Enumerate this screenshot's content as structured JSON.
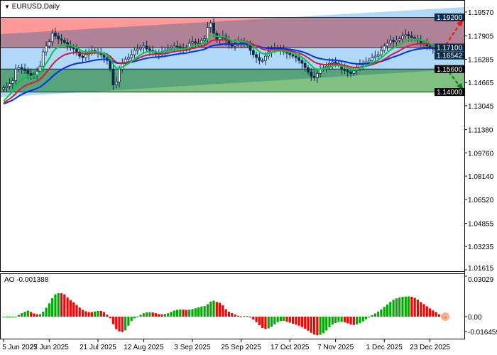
{
  "header": {
    "symbol_timeframe": "EURUSD,Daily",
    "menu_icon": "triangle-down-icon"
  },
  "ao_panel": {
    "label": "AO -0.001388"
  },
  "colors": {
    "fast_ma": "#00cc44",
    "mid_ma": "#d41c3c",
    "slow_ma": "#0030f0",
    "bull_candle": "#ffffff",
    "bear_candle": "#0b2a44",
    "ao_up": "#00aa00",
    "ao_down": "#ff0000",
    "resistance_zone": "#ff9999",
    "support_zone": "#80c080",
    "channel": "#b0d8f8"
  },
  "chart_data": {
    "type": "candlestick",
    "symbol": "EURUSD",
    "timeframe": "Daily",
    "ylim": [
      1.01615,
      1.1957
    ],
    "y_ticks": [
      "1.19570",
      "1.17905",
      "1.16285",
      "1.14665",
      "1.13045",
      "1.11380",
      "1.09760",
      "1.08140",
      "1.06520",
      "1.04855",
      "1.03235",
      "1.01615"
    ],
    "price_labels": [
      {
        "text": "1.19200",
        "value": 1.192,
        "style": "level"
      },
      {
        "text": "1.17100",
        "value": 1.171,
        "style": "level"
      },
      {
        "text": "1.16542",
        "value": 1.16542,
        "style": "current"
      },
      {
        "text": "1.15600",
        "value": 1.156,
        "style": "level-dark"
      },
      {
        "text": "1.14000",
        "value": 1.14,
        "style": "level-dark"
      }
    ],
    "zones": [
      {
        "type": "resistance",
        "from": 1.171,
        "to": 1.192
      },
      {
        "type": "support",
        "from": 1.14,
        "to": 1.156
      }
    ],
    "x_labels": [
      "5 Jun 2025",
      "27 Jun 2025",
      "21 Jul 2025",
      "12 Aug 2025",
      "3 Sep 2025",
      "25 Sep 2025",
      "17 Oct 2025",
      "7 Nov 2025",
      "1 Dec 2025",
      "23 Dec 2025"
    ],
    "x_label_index": [
      0,
      15,
      31,
      46,
      62,
      78,
      94,
      109,
      125,
      140
    ],
    "close": [
      1.143,
      1.144,
      1.146,
      1.148,
      1.156,
      1.157,
      1.156,
      1.155,
      1.153,
      1.151,
      1.152,
      1.1545,
      1.158,
      1.168,
      1.172,
      1.175,
      1.181,
      1.179,
      1.177,
      1.176,
      1.1745,
      1.172,
      1.171,
      1.17,
      1.168,
      1.165,
      1.164,
      1.166,
      1.168,
      1.169,
      1.168,
      1.167,
      1.166,
      1.164,
      1.162,
      1.156,
      1.145,
      1.147,
      1.156,
      1.16,
      1.163,
      1.164,
      1.166,
      1.169,
      1.17,
      1.171,
      1.172,
      1.17,
      1.169,
      1.168,
      1.166,
      1.167,
      1.168,
      1.169,
      1.17,
      1.171,
      1.172,
      1.1715,
      1.1705,
      1.17,
      1.171,
      1.174,
      1.175,
      1.174,
      1.174,
      1.176,
      1.177,
      1.185,
      1.188,
      1.181,
      1.176,
      1.178,
      1.179,
      1.176,
      1.173,
      1.172,
      1.174,
      1.175,
      1.1745,
      1.174,
      1.173,
      1.169,
      1.166,
      1.164,
      1.162,
      1.162,
      1.165,
      1.168,
      1.17,
      1.171,
      1.17,
      1.169,
      1.168,
      1.167,
      1.166,
      1.165,
      1.164,
      1.162,
      1.16,
      1.157,
      1.154,
      1.151,
      1.15,
      1.153,
      1.156,
      1.157,
      1.158,
      1.16,
      1.161,
      1.16,
      1.159,
      1.156,
      1.155,
      1.154,
      1.153,
      1.155,
      1.157,
      1.159,
      1.16,
      1.161,
      1.162,
      1.164,
      1.165,
      1.166,
      1.169,
      1.172,
      1.174,
      1.176,
      1.175,
      1.176,
      1.177,
      1.179,
      1.18,
      1.179,
      1.178,
      1.177,
      1.176,
      1.174,
      1.174,
      1.172,
      1.171,
      1.17,
      1.169,
      1.167,
      1.1655,
      1.1654
    ],
    "ao": {
      "ylim": [
        -0.016459,
        0.03029
      ],
      "y_ticks": [
        "0.03029",
        "0.00",
        "-0.016459"
      ],
      "last_value": -0.001388
    },
    "forecast": [
      {
        "direction": "up",
        "target": 1.192
      },
      {
        "direction": "down",
        "target": 1.14
      }
    ]
  }
}
